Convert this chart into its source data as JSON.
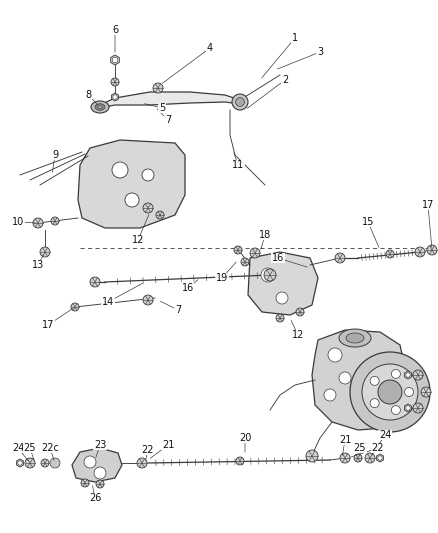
{
  "bg_color": "#f5f5f5",
  "line_color": "#3a3a3a",
  "label_color": "#111111",
  "fig_width": 4.38,
  "fig_height": 5.33,
  "dpi": 100,
  "img_data": ""
}
